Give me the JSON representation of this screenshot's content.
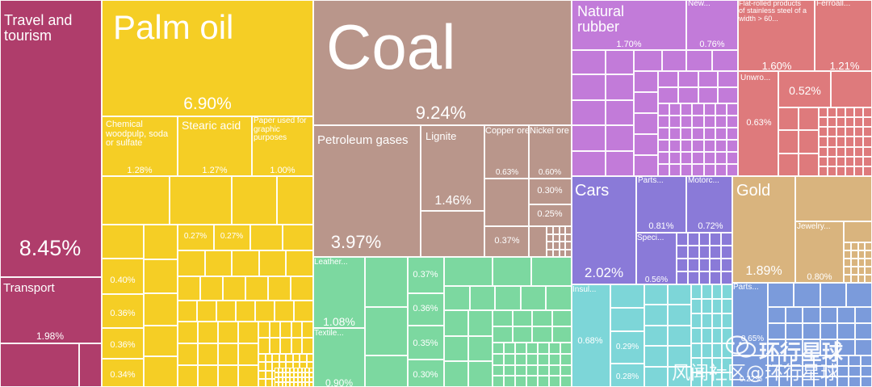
{
  "colors": {
    "services": "#AF3D6B",
    "agriculture": "#F5CE25",
    "minerals": "#B9968B",
    "textiles": "#7CD8A0",
    "instruments": "#C27BD9",
    "metals": "#DE7A7C",
    "transportation": "#8A7AD8",
    "precious_metals": "#D9B47E",
    "chemicals": "#7DD6D8",
    "machines": "#7B9BDB"
  },
  "chart_data": {
    "type": "treemap",
    "title": "",
    "tiles": [
      {
        "name": "Travel and tourism",
        "group": "services",
        "value": 8.45,
        "value_label": "8.45%"
      },
      {
        "name": "Transport",
        "group": "services",
        "value": 1.98,
        "value_label": "1.98%"
      },
      {
        "name": "Palm oil",
        "group": "agriculture",
        "value": 6.9,
        "value_label": "6.90%"
      },
      {
        "name": "Chemical woodpulp, soda or sulfate",
        "group": "agriculture",
        "value": 1.28,
        "value_label": "1.28%"
      },
      {
        "name": "Stearic acid",
        "group": "agriculture",
        "value": 1.27,
        "value_label": "1.27%"
      },
      {
        "name": "Paper used for graphic purposes",
        "group": "agriculture",
        "value": 1.0,
        "value_label": "1.00%"
      },
      {
        "name": "",
        "group": "agriculture",
        "value": 0.27,
        "value_label": "0.27%"
      },
      {
        "name": "",
        "group": "agriculture",
        "value": 0.27,
        "value_label": "0.27%"
      },
      {
        "name": "",
        "group": "agriculture",
        "value": 0.4,
        "value_label": "0.40%"
      },
      {
        "name": "",
        "group": "agriculture",
        "value": 0.36,
        "value_label": "0.36%"
      },
      {
        "name": "",
        "group": "agriculture",
        "value": 0.36,
        "value_label": "0.36%"
      },
      {
        "name": "",
        "group": "agriculture",
        "value": 0.34,
        "value_label": "0.34%"
      },
      {
        "name": "Coal",
        "group": "minerals",
        "value": 9.24,
        "value_label": "9.24%"
      },
      {
        "name": "Petroleum gases",
        "group": "minerals",
        "value": 3.97,
        "value_label": "3.97%"
      },
      {
        "name": "Lignite",
        "group": "minerals",
        "value": 1.46,
        "value_label": "1.46%"
      },
      {
        "name": "Copper ore",
        "group": "minerals",
        "value": 0.63,
        "value_label": "0.63%"
      },
      {
        "name": "Nickel ore",
        "group": "minerals",
        "value": 0.6,
        "value_label": "0.60%"
      },
      {
        "name": "",
        "group": "minerals",
        "value": 0.3,
        "value_label": "0.30%"
      },
      {
        "name": "",
        "group": "minerals",
        "value": 0.25,
        "value_label": "0.25%"
      },
      {
        "name": "",
        "group": "minerals",
        "value": 0.37,
        "value_label": "0.37%"
      },
      {
        "name": "Leather...",
        "group": "textiles",
        "value": 1.08,
        "value_label": "1.08%"
      },
      {
        "name": "Textile...",
        "group": "textiles",
        "value": 0.9,
        "value_label": "0.90%"
      },
      {
        "name": "",
        "group": "textiles",
        "value": 0.37,
        "value_label": "0.37%"
      },
      {
        "name": "",
        "group": "textiles",
        "value": 0.36,
        "value_label": "0.36%"
      },
      {
        "name": "",
        "group": "textiles",
        "value": 0.35,
        "value_label": "0.35%"
      },
      {
        "name": "",
        "group": "textiles",
        "value": 0.3,
        "value_label": "0.30%"
      },
      {
        "name": "Natural rubber",
        "group": "instruments",
        "value": 1.7,
        "value_label": "1.70%"
      },
      {
        "name": "New...",
        "group": "instruments",
        "value": 0.76,
        "value_label": "0.76%"
      },
      {
        "name": "Flat-rolled products of stainless steel of a width > 60...",
        "group": "metals",
        "value": 1.6,
        "value_label": "1.60%"
      },
      {
        "name": "Ferroall...",
        "group": "metals",
        "value": 1.21,
        "value_label": "1.21%"
      },
      {
        "name": "Unwro...",
        "group": "metals",
        "value": 0.63,
        "value_label": "0.63%"
      },
      {
        "name": "",
        "group": "metals",
        "value": 0.52,
        "value_label": "0.52%"
      },
      {
        "name": "Cars",
        "group": "transportation",
        "value": 2.02,
        "value_label": "2.02%"
      },
      {
        "name": "Parts...",
        "group": "transportation",
        "value": 0.81,
        "value_label": "0.81%"
      },
      {
        "name": "Motorc...",
        "group": "transportation",
        "value": 0.72,
        "value_label": "0.72%"
      },
      {
        "name": "Speci...",
        "group": "transportation",
        "value": 0.56,
        "value_label": "0.56%"
      },
      {
        "name": "Gold",
        "group": "precious_metals",
        "value": 1.89,
        "value_label": "1.89%"
      },
      {
        "name": "Jewelry...",
        "group": "precious_metals",
        "value": 0.8,
        "value_label": "0.80%"
      },
      {
        "name": "Insul...",
        "group": "chemicals",
        "value": 0.68,
        "value_label": "0.68%"
      },
      {
        "name": "",
        "group": "chemicals",
        "value": 0.29,
        "value_label": "0.29%"
      },
      {
        "name": "",
        "group": "chemicals",
        "value": 0.28,
        "value_label": "0.28%"
      },
      {
        "name": "Parts...",
        "group": "machines",
        "value": 0.65,
        "value_label": "0.65%"
      },
      {
        "name": "",
        "group": "machines",
        "value": 0.22,
        "value_label": "0.22%"
      }
    ]
  },
  "watermark": {
    "line1": "环行星球",
    "line2": "风闻社区@环行星球"
  }
}
